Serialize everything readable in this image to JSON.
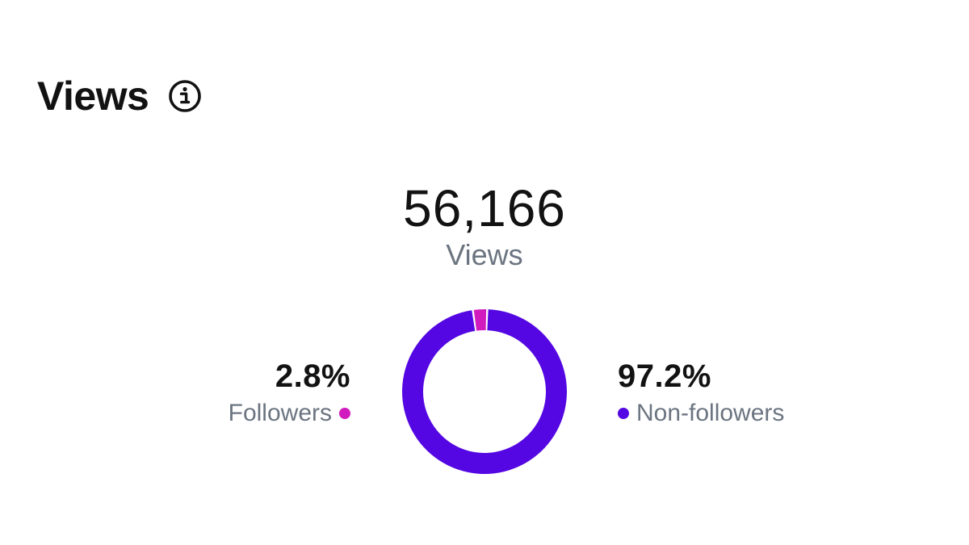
{
  "header": {
    "title": "Views",
    "info_icon": "info-circle-icon"
  },
  "total": {
    "value": "56,166",
    "label": "Views"
  },
  "chart_data": {
    "type": "pie",
    "style": "donut",
    "total_value": 56166,
    "total_label": "Views",
    "series": [
      {
        "name": "Followers",
        "value": 2.8,
        "value_label": "2.8%",
        "color": "#d21bbf"
      },
      {
        "name": "Non-followers",
        "value": 97.2,
        "value_label": "97.2%",
        "color": "#5407e2"
      }
    ],
    "legend_placement": "sides"
  }
}
